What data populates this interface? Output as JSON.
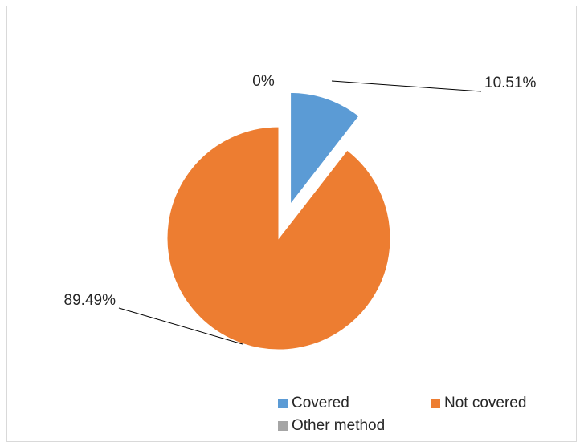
{
  "chart_data": {
    "type": "pie",
    "title": "",
    "categories": [
      "Covered",
      "Not covered",
      "Other method"
    ],
    "values": [
      10.51,
      89.49,
      0
    ],
    "data_labels": [
      "10.51%",
      "89.49%",
      "0%"
    ],
    "colors": [
      "#5b9bd5",
      "#ed7d31",
      "#a5a5a5"
    ],
    "exploded": "Covered",
    "legend_position": "bottom"
  }
}
